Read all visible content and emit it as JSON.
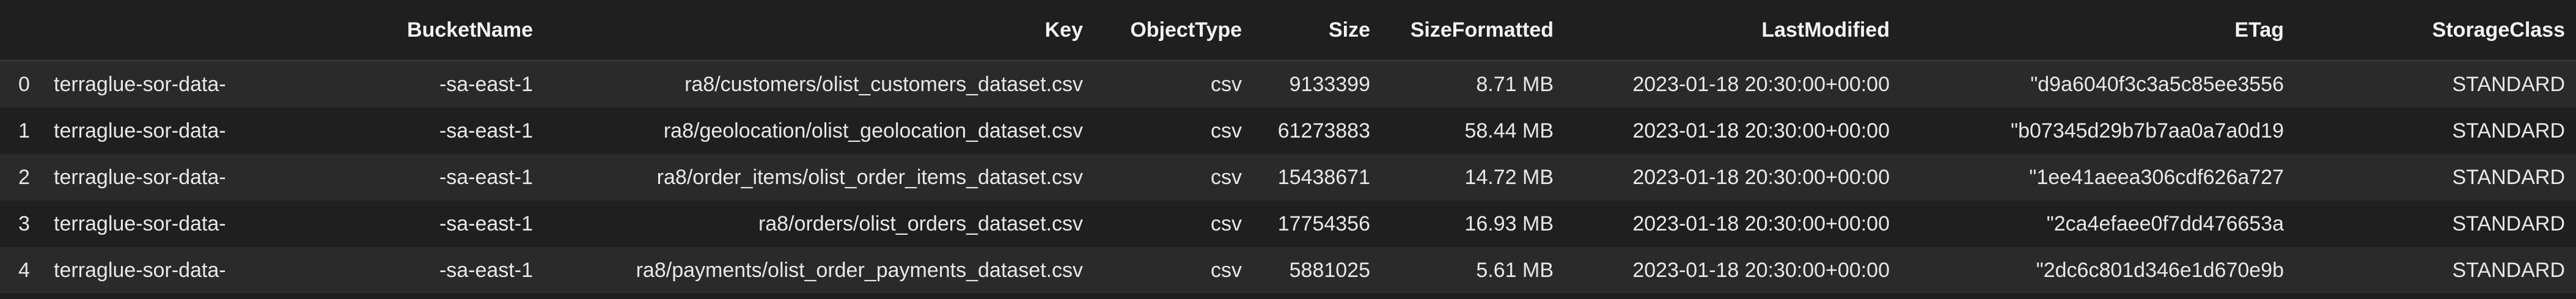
{
  "table": {
    "columns": [
      "",
      "BucketName",
      "Key",
      "ObjectType",
      "Size",
      "SizeFormatted",
      "LastModified",
      "ETag",
      "StorageClass"
    ],
    "rows": [
      {
        "index": "0",
        "bucket_prefix": "terraglue-sor-data-",
        "bucket_suffix": "-sa-east-1",
        "key": "ra8/customers/olist_customers_dataset.csv",
        "object_type": "csv",
        "size": "9133399",
        "size_formatted": "8.71 MB",
        "last_modified": "2023-01-18 20:30:00+00:00",
        "etag": "\"d9a6040f3c3a5c85ee3556",
        "storage_class": "STANDARD"
      },
      {
        "index": "1",
        "bucket_prefix": "terraglue-sor-data-",
        "bucket_suffix": "-sa-east-1",
        "key": "ra8/geolocation/olist_geolocation_dataset.csv",
        "object_type": "csv",
        "size": "61273883",
        "size_formatted": "58.44 MB",
        "last_modified": "2023-01-18 20:30:00+00:00",
        "etag": "\"b07345d29b7b7aa0a7a0d19",
        "storage_class": "STANDARD"
      },
      {
        "index": "2",
        "bucket_prefix": "terraglue-sor-data-",
        "bucket_suffix": "-sa-east-1",
        "key": "ra8/order_items/olist_order_items_dataset.csv",
        "object_type": "csv",
        "size": "15438671",
        "size_formatted": "14.72 MB",
        "last_modified": "2023-01-18 20:30:00+00:00",
        "etag": "\"1ee41aeea306cdf626a727",
        "storage_class": "STANDARD"
      },
      {
        "index": "3",
        "bucket_prefix": "terraglue-sor-data-",
        "bucket_suffix": "-sa-east-1",
        "key": "ra8/orders/olist_orders_dataset.csv",
        "object_type": "csv",
        "size": "17754356",
        "size_formatted": "16.93 MB",
        "last_modified": "2023-01-18 20:30:00+00:00",
        "etag": "\"2ca4efaee0f7dd476653a",
        "storage_class": "STANDARD"
      },
      {
        "index": "4",
        "bucket_prefix": "terraglue-sor-data-",
        "bucket_suffix": "-sa-east-1",
        "key": "ra8/payments/olist_order_payments_dataset.csv",
        "object_type": "csv",
        "size": "5881025",
        "size_formatted": "5.61 MB",
        "last_modified": "2023-01-18 20:30:00+00:00",
        "etag": "\"2dc6c801d346e1d670e9b",
        "storage_class": "STANDARD"
      }
    ]
  }
}
